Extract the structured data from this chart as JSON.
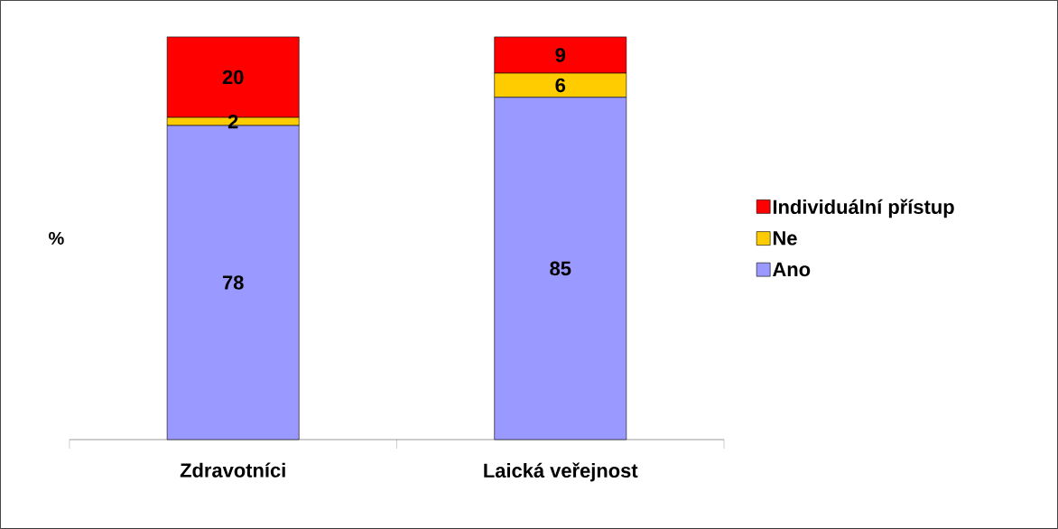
{
  "chart_data": {
    "type": "bar",
    "stacked": true,
    "ylabel": "%",
    "categories": [
      "Zdravotníci",
      "Laická veřejnost"
    ],
    "series": [
      {
        "name": "Ano",
        "color": "#9999ff",
        "values": [
          78,
          85
        ]
      },
      {
        "name": "Ne",
        "color": "#ffcc00",
        "values": [
          2,
          6
        ]
      },
      {
        "name": "Individuální přístup",
        "color": "#ff0000",
        "values": [
          20,
          9
        ]
      }
    ],
    "data_labels": true,
    "legend": "right"
  }
}
